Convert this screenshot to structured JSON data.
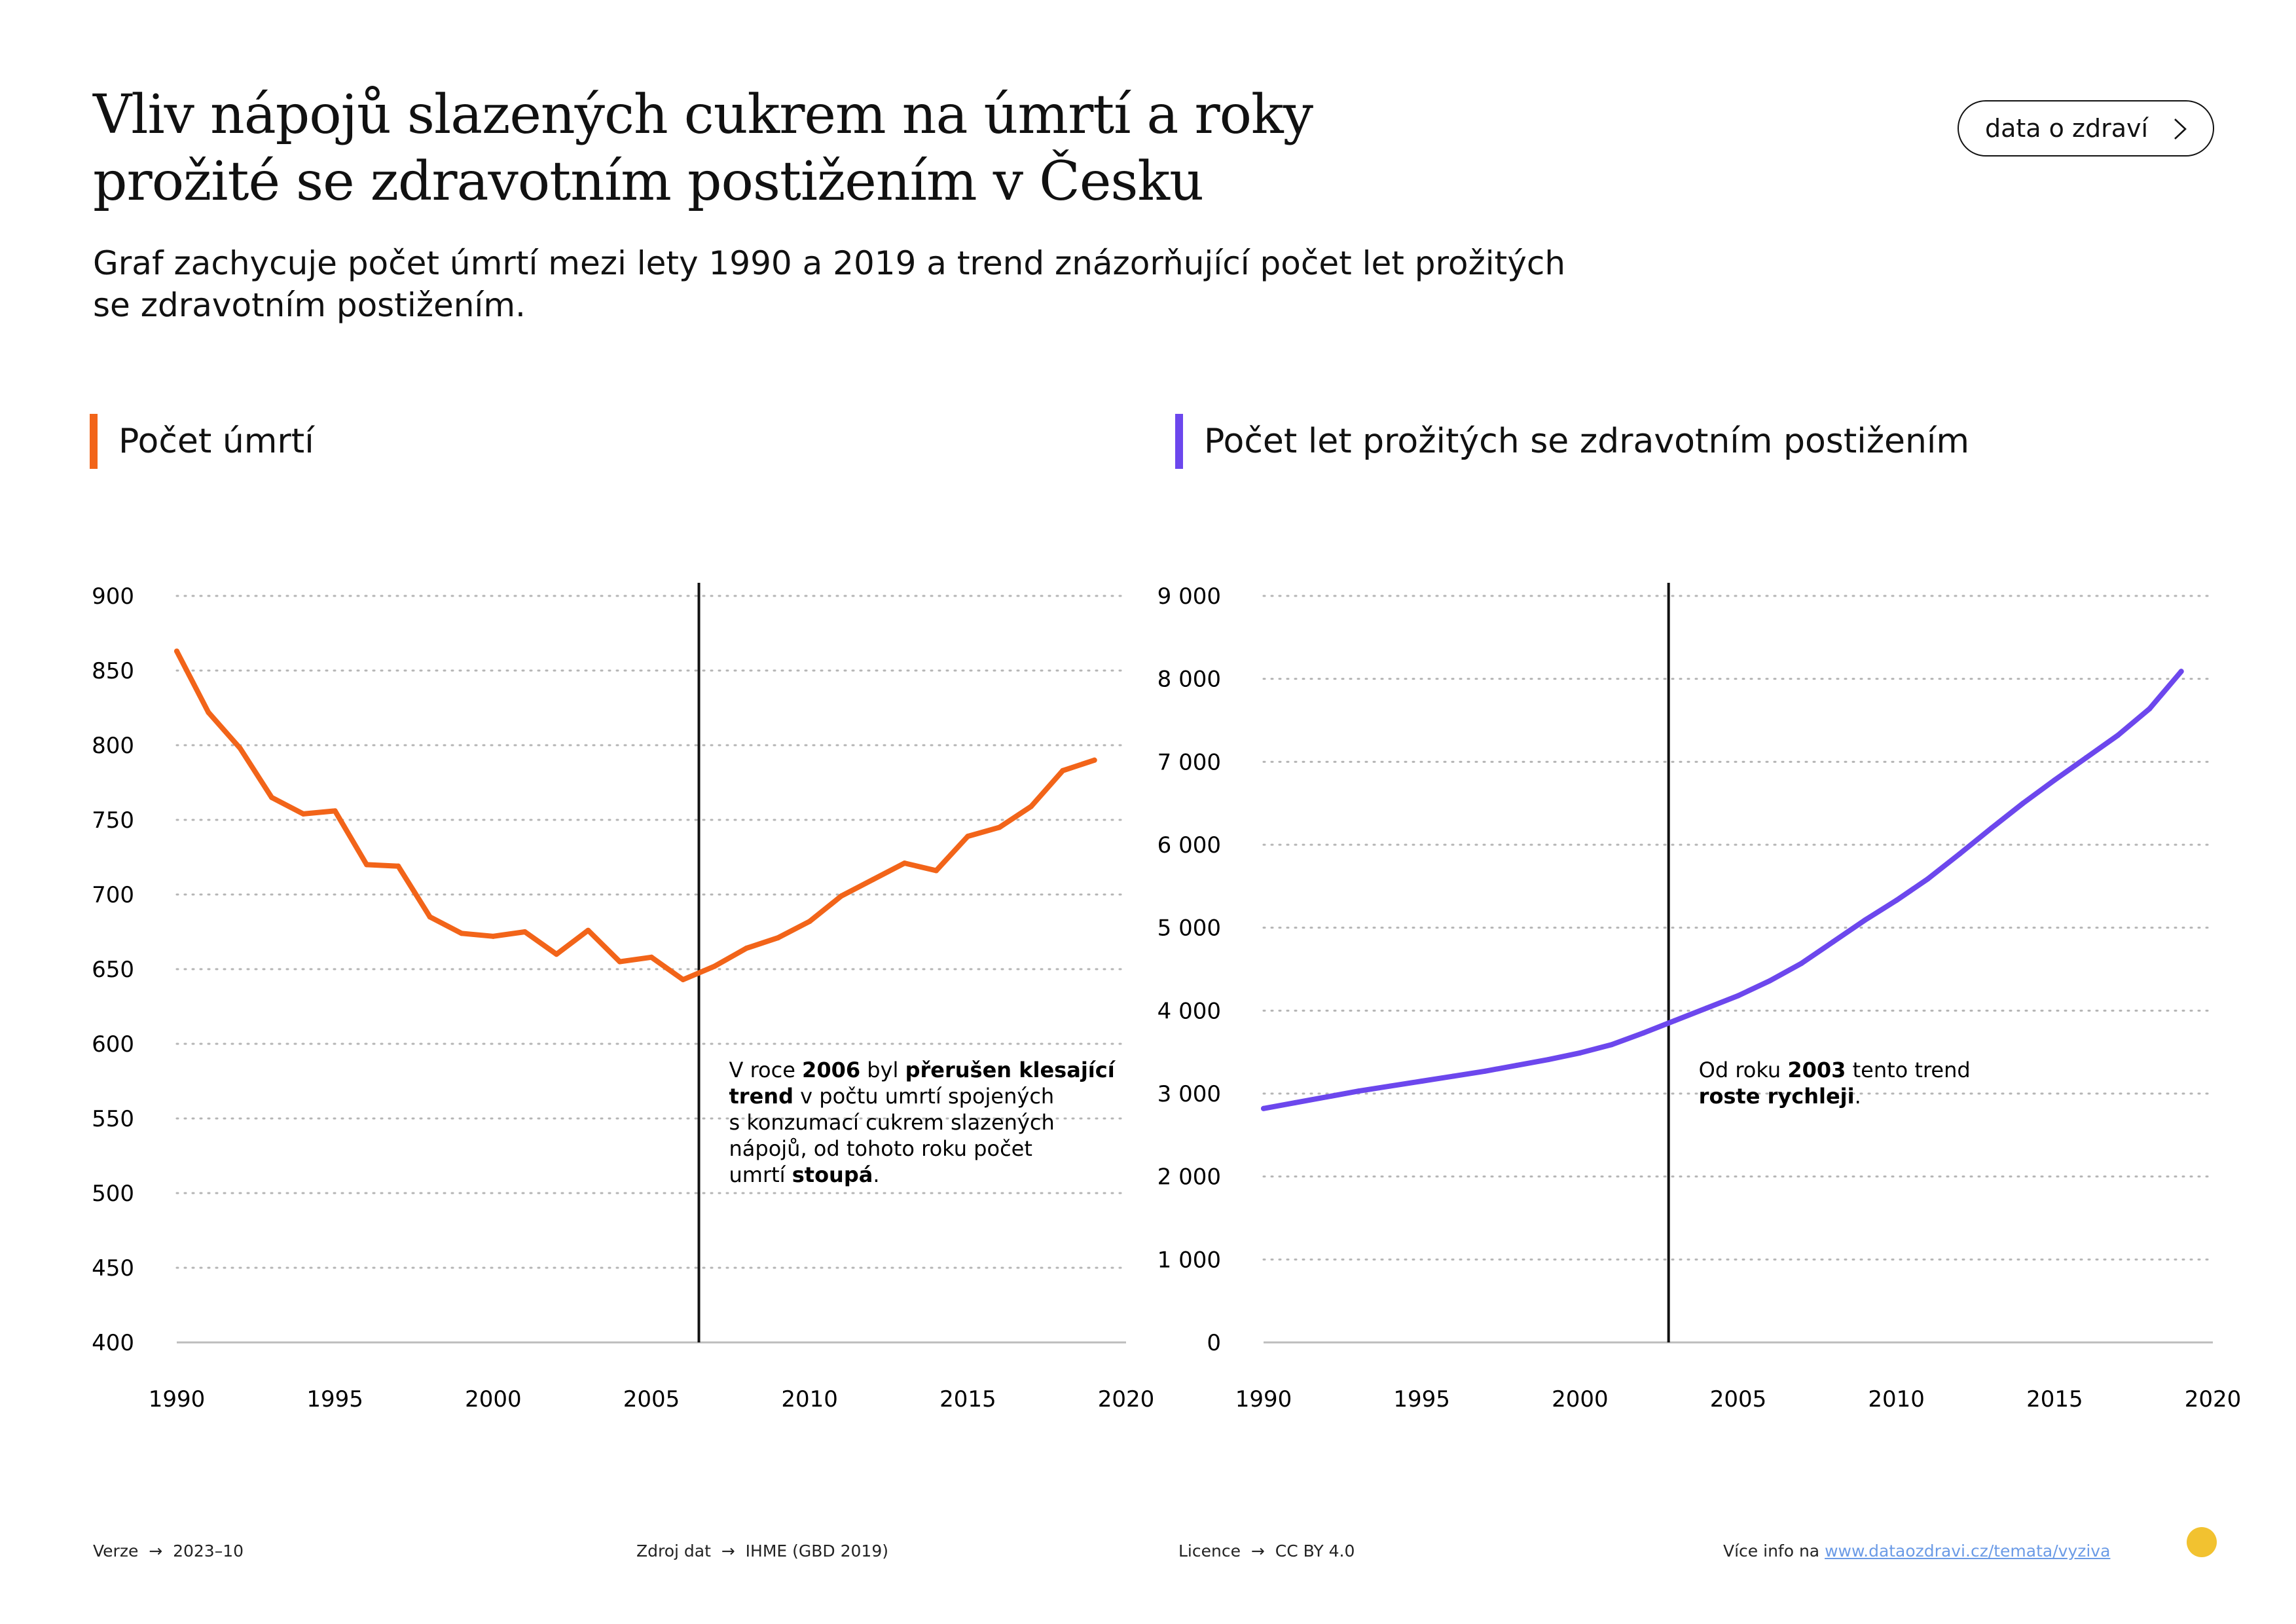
{
  "header": {
    "title_line1": "Vliv nápojů slazených cukrem na úmrtí a roky",
    "title_line2": "prožité se zdravotním postižením v Česku",
    "subtitle_line1": "Graf zachycuje počet úmrtí mezi lety 1990 a 2019 a trend znázorňující počet let prožitých",
    "subtitle_line2": "se zdravotním postižením.",
    "link_button": "data o zdraví",
    "link_icon": "chevron-right-icon"
  },
  "colors": {
    "deaths": "#f26419",
    "disability": "#6c47ed",
    "annotation_line": "#111111",
    "grid": "#b5b5b5",
    "logo": "#f2c230"
  },
  "chart_data": [
    {
      "type": "line",
      "title": "Počet úmrtí",
      "xlim": [
        1990,
        2020
      ],
      "ylim": [
        400,
        900
      ],
      "x_ticks": [
        1990,
        1995,
        2000,
        2005,
        2010,
        2015,
        2020
      ],
      "y_ticks": [
        400,
        450,
        500,
        550,
        600,
        650,
        700,
        750,
        800,
        850,
        900
      ],
      "y_tick_labels": [
        "400",
        "450",
        "500",
        "550",
        "600",
        "650",
        "700",
        "750",
        "800",
        "850",
        "900"
      ],
      "grid": true,
      "series": [
        {
          "x": [
            1990,
            1991,
            1992,
            1993,
            1994,
            1995,
            1996,
            1997,
            1998,
            1999,
            2000,
            2001,
            2002,
            2003,
            2004,
            2005,
            2006,
            2007,
            2008,
            2009,
            2010,
            2011,
            2012,
            2013,
            2014,
            2015,
            2016,
            2017,
            2018,
            2019
          ],
          "values": [
            863,
            822,
            798,
            765,
            754,
            756,
            720,
            719,
            685,
            674,
            672,
            675,
            660,
            676,
            655,
            658,
            643,
            652,
            664,
            671,
            682,
            699,
            710,
            721,
            716,
            739,
            745,
            759,
            783,
            790
          ]
        }
      ],
      "marker_x": 2006.5,
      "annotation": {
        "lines": [
          [
            {
              "t": "V roce ",
              "b": false
            },
            {
              "t": "2006",
              "b": true
            },
            {
              "t": " byl ",
              "b": false
            },
            {
              "t": "přerušen klesající",
              "b": true
            }
          ],
          [
            {
              "t": "trend",
              "b": true
            },
            {
              "t": " v počtu umrtí spojených",
              "b": false
            }
          ],
          [
            {
              "t": "s konzumací cukrem slazených",
              "b": false
            }
          ],
          [
            {
              "t": "nápojů, od tohoto roku počet",
              "b": false
            }
          ],
          [
            {
              "t": "umrtí ",
              "b": false
            },
            {
              "t": "stoupá",
              "b": true
            },
            {
              "t": ".",
              "b": false
            }
          ]
        ]
      }
    },
    {
      "type": "line",
      "title": "Počet let prožitých se zdravotním postižením",
      "xlim": [
        1990,
        2020
      ],
      "ylim": [
        0,
        9000
      ],
      "x_ticks": [
        1990,
        1995,
        2000,
        2005,
        2010,
        2015,
        2020
      ],
      "y_ticks": [
        0,
        1000,
        2000,
        3000,
        4000,
        5000,
        6000,
        7000,
        8000,
        9000
      ],
      "y_tick_labels": [
        "0",
        "1 000",
        "2 000",
        "3 000",
        "4 000",
        "5 000",
        "6 000",
        "7 000",
        "8 000",
        "9 000"
      ],
      "grid": true,
      "series": [
        {
          "x": [
            1990,
            1991,
            1992,
            1993,
            1994,
            1995,
            1996,
            1997,
            1998,
            1999,
            2000,
            2001,
            2002,
            2003,
            2004,
            2005,
            2006,
            2007,
            2008,
            2009,
            2010,
            2011,
            2012,
            2013,
            2014,
            2015,
            2016,
            2017,
            2018,
            2019
          ],
          "values": [
            2820,
            2890,
            2960,
            3030,
            3090,
            3150,
            3210,
            3270,
            3340,
            3410,
            3490,
            3590,
            3730,
            3880,
            4030,
            4180,
            4360,
            4570,
            4830,
            5090,
            5330,
            5590,
            5890,
            6200,
            6500,
            6780,
            7050,
            7320,
            7640,
            8090
          ]
        }
      ],
      "marker_x": 2002.8,
      "annotation": {
        "lines": [
          [
            {
              "t": "Od roku ",
              "b": false
            },
            {
              "t": "2003",
              "b": true
            },
            {
              "t": " tento trend",
              "b": false
            }
          ],
          [
            {
              "t": "roste rychleji",
              "b": true
            },
            {
              "t": ".",
              "b": false
            }
          ]
        ]
      }
    }
  ],
  "footer": {
    "version_label": "Verze",
    "version_value": "2023–10",
    "source_label": "Zdroj dat",
    "source_value": "IHME (GBD 2019)",
    "license_label": "Licence",
    "license_value": "CC BY 4.0",
    "more_info_label": "Více info na",
    "more_info_link": "www.dataozdravi.cz/temata/vyziva"
  }
}
